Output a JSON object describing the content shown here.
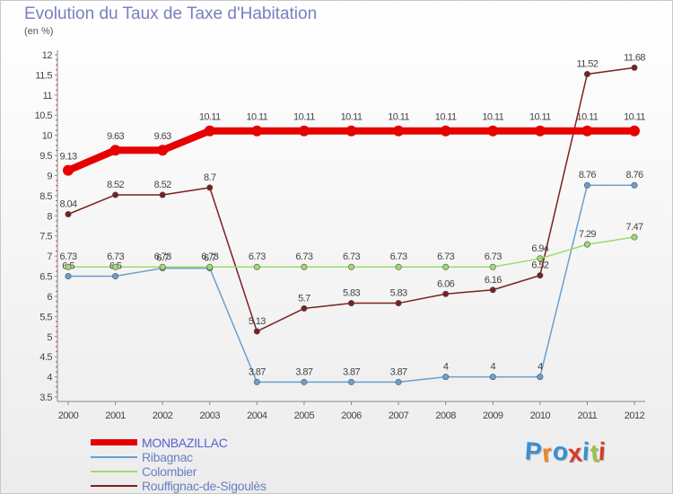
{
  "title": "Evolution du Taux de Taxe d'Habitation",
  "subtitle": "(en %)",
  "logo": {
    "text": "Proxiti",
    "colors": [
      "#3b8fd1",
      "#e8882a",
      "#3b8fd1",
      "#d93a2a",
      "#3b8fd1",
      "#9bc34a",
      "#d93a2a"
    ]
  },
  "chart_data": {
    "type": "line",
    "title": "Evolution du Taux de Taxe d'Habitation",
    "ylabel": "(en %)",
    "xlabel": "",
    "x": [
      "2000",
      "2001",
      "2002",
      "2003",
      "2004",
      "2005",
      "2006",
      "2007",
      "2008",
      "2009",
      "2010",
      "2011",
      "2012"
    ],
    "ylim": [
      3.5,
      12
    ],
    "yticks": [
      "3.5",
      "4",
      "4.5",
      "5",
      "5.5",
      "6",
      "6.5",
      "7",
      "7.5",
      "8",
      "8.5",
      "9",
      "9.5",
      "10",
      "10.5",
      "11",
      "11.5",
      "12"
    ],
    "grid": false,
    "legend_position": "bottom-left",
    "series": [
      {
        "name": "MONBAZILLAC",
        "color": "#e60000",
        "width": 8,
        "values": [
          9.13,
          9.63,
          9.63,
          10.11,
          10.11,
          10.11,
          10.11,
          10.11,
          10.11,
          10.11,
          10.11,
          10.11,
          10.11
        ],
        "labels": [
          "9.13",
          "9.63",
          "9.63",
          "10.11",
          "10.11",
          "10.11",
          "10.11",
          "10.11",
          "10.11",
          "10.11",
          "10.11",
          "10.11",
          "10.11"
        ]
      },
      {
        "name": "Ribagnac",
        "color": "#6a9fcf",
        "width": 1.5,
        "values": [
          6.5,
          6.5,
          6.7,
          6.7,
          3.87,
          3.87,
          3.87,
          3.87,
          4,
          4,
          4,
          8.76,
          8.76
        ],
        "labels": [
          "6.5",
          "6.5",
          "6.7",
          "6.7",
          "3.87",
          "3.87",
          "3.87",
          "3.87",
          "4",
          "4",
          "4",
          "8.76",
          "8.76"
        ]
      },
      {
        "name": "Colombier",
        "color": "#9ddc6a",
        "width": 1.5,
        "values": [
          6.73,
          6.73,
          6.73,
          6.73,
          6.73,
          6.73,
          6.73,
          6.73,
          6.73,
          6.73,
          6.94,
          7.29,
          7.47
        ],
        "labels": [
          "6.73",
          "6.73",
          "6.73",
          "6.73",
          "6.73",
          "6.73",
          "6.73",
          "6.73",
          "6.73",
          "6.73",
          "6.94",
          "7.29",
          "7.47"
        ]
      },
      {
        "name": "Rouffignac-de-Sigoulès",
        "color": "#7a2020",
        "width": 1.5,
        "values": [
          8.04,
          8.52,
          8.52,
          8.7,
          5.13,
          5.7,
          5.83,
          5.83,
          6.06,
          6.16,
          6.52,
          11.52,
          11.68
        ],
        "labels": [
          "8.04",
          "8.52",
          "8.52",
          "8.7",
          "5.13",
          "5.7",
          "5.83",
          "5.83",
          "6.06",
          "6.16",
          "6.52",
          "11.52",
          "11.68"
        ]
      }
    ]
  }
}
